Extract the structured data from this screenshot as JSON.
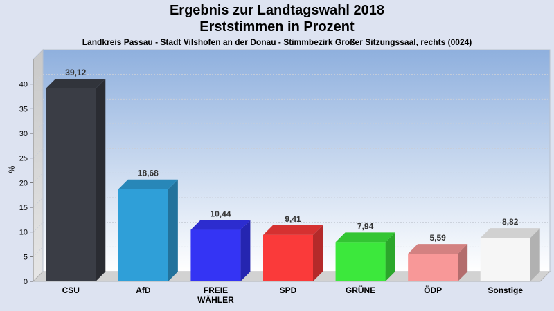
{
  "title": "Ergebnis zur Landtagswahl 2018",
  "title2": "Erststimmen in Prozent",
  "subtitle": "Landkreis Passau - Stadt Vilshofen an der Donau - Stimmbezirk Großer Sitzungssaal, rechts (0024)",
  "chart_data": {
    "type": "bar",
    "title": "Ergebnis zur Landtagswahl 2018",
    "subtitle": "Erststimmen in Prozent",
    "ylabel": "%",
    "ylim": [
      0,
      45
    ],
    "yticks": [
      0,
      5,
      10,
      15,
      20,
      25,
      30,
      35,
      40
    ],
    "grid": true,
    "categories": [
      {
        "label": "CSU",
        "lines": [
          "CSU"
        ],
        "value": 39.12,
        "value_label": "39,12",
        "color": "#3a3d45"
      },
      {
        "label": "AfD",
        "lines": [
          "AfD"
        ],
        "value": 18.68,
        "value_label": "18,68",
        "color": "#2f9fd8"
      },
      {
        "label": "FREIE WÄHLER",
        "lines": [
          "FREIE",
          "WÄHLER"
        ],
        "value": 10.44,
        "value_label": "10,44",
        "color": "#3434f4"
      },
      {
        "label": "SPD",
        "lines": [
          "SPD"
        ],
        "value": 9.41,
        "value_label": "9,41",
        "color": "#fa3a3a"
      },
      {
        "label": "GRÜNE",
        "lines": [
          "GRÜNE"
        ],
        "value": 7.94,
        "value_label": "7,94",
        "color": "#3ce83c"
      },
      {
        "label": "ÖDP",
        "lines": [
          "ÖDP"
        ],
        "value": 5.59,
        "value_label": "5,59",
        "color": "#f89898"
      },
      {
        "label": "Sonstige",
        "lines": [
          "Sonstige"
        ],
        "value": 8.82,
        "value_label": "8,82",
        "color": "#f6f6f6"
      }
    ]
  }
}
